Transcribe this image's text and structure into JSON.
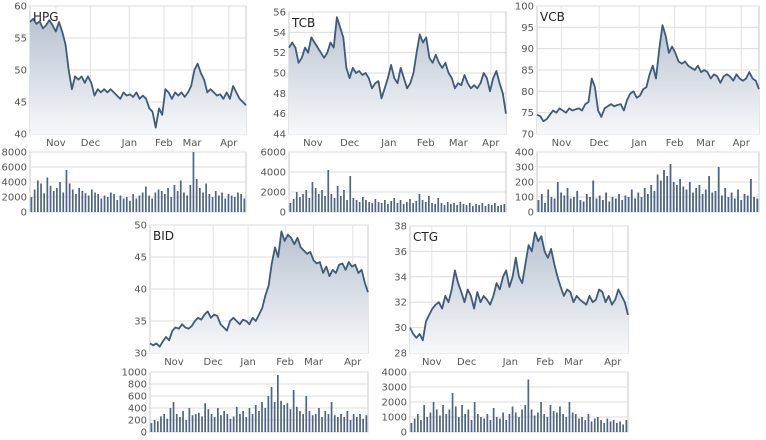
{
  "chart_data": [
    {
      "type": "area",
      "ticker": "HPG",
      "price_axis": {
        "min": 40,
        "max": 60,
        "ticks": [
          40,
          45,
          50,
          55,
          60
        ]
      },
      "volume_axis": {
        "min": 0,
        "max": 8000,
        "ticks": [
          0,
          2000,
          4000,
          6000,
          8000
        ]
      },
      "x_tick_labels": [
        "Nov",
        "Dec",
        "Jan",
        "Feb",
        "Mar",
        "Apr"
      ],
      "price_series": [
        57.5,
        58,
        57.2,
        57.6,
        56.5,
        57,
        57.8,
        57,
        56,
        57.5,
        56,
        54,
        50,
        47,
        49,
        48.5,
        49,
        48,
        49,
        48,
        46,
        47,
        46.5,
        47,
        46.5,
        47,
        46.5,
        46,
        45.5,
        46.5,
        46,
        46.2,
        45.8,
        46.5,
        45.5,
        46,
        45.5,
        44,
        43.5,
        41,
        44,
        43,
        47,
        46.5,
        45.5,
        46.5,
        46,
        46.5,
        45.8,
        46.5,
        47.5,
        50,
        51,
        49.5,
        48.5,
        46.5,
        47,
        46.5,
        46,
        46.2,
        45.5,
        46.5,
        45.5,
        47.5,
        46.5,
        45.5,
        45,
        44.5
      ],
      "volume_series": [
        2000,
        3000,
        4200,
        3800,
        2500,
        4600,
        3500,
        2800,
        3200,
        4000,
        2600,
        5600,
        3800,
        3000,
        2400,
        3200,
        2800,
        2500,
        2200,
        3000,
        2600,
        2400,
        1800,
        2200,
        2000,
        2600,
        2400,
        1600,
        2200,
        1800,
        2000,
        1500,
        2400,
        1800,
        2200,
        2600,
        3400,
        2200,
        1800,
        2600,
        3000,
        2800,
        2400,
        3200,
        2000,
        3600,
        2800,
        4200,
        2600,
        2200,
        3600,
        8000,
        4400,
        3200,
        2600,
        3800,
        2400,
        2000,
        2800,
        2200,
        2600,
        1800,
        2400,
        2200,
        2000,
        2600,
        2400,
        1800
      ]
    },
    {
      "type": "area",
      "ticker": "TCB",
      "price_axis": {
        "min": 44,
        "max": 56,
        "ticks": [
          44,
          46,
          48,
          50,
          52,
          54,
          56
        ]
      },
      "volume_axis": {
        "min": 0,
        "max": 6000,
        "ticks": [
          0,
          2000,
          4000,
          6000
        ]
      },
      "x_tick_labels": [
        "Nov",
        "Dec",
        "Jan",
        "Feb",
        "Mar",
        "Apr"
      ],
      "price_series": [
        52.5,
        53,
        52.5,
        51,
        51.5,
        52.5,
        52,
        53.5,
        53,
        52.5,
        52,
        51.5,
        52,
        53,
        52.5,
        55.5,
        54.5,
        53.5,
        50.5,
        49.5,
        50.5,
        50,
        50.2,
        49.8,
        50,
        49.5,
        48.5,
        49,
        49.2,
        47.5,
        48.5,
        49.5,
        50.8,
        49.5,
        49,
        50.5,
        49.5,
        48.5,
        49,
        50,
        52,
        53.8,
        53,
        53.5,
        51.5,
        51,
        51.8,
        51,
        50.5,
        51,
        50,
        49.5,
        48.5,
        49,
        48.8,
        49.8,
        49,
        48.5,
        48.8,
        48.5,
        49,
        50,
        49.5,
        48.2,
        49.5,
        50.2,
        49,
        48,
        46
      ],
      "volume_series": [
        900,
        1300,
        2000,
        1500,
        1800,
        2200,
        1400,
        3000,
        2400,
        1800,
        2200,
        1600,
        4200,
        1800,
        1400,
        2600,
        1600,
        2200,
        1200,
        3600,
        1400,
        1200,
        1000,
        1500,
        1200,
        1000,
        900,
        1300,
        1000,
        900,
        1200,
        800,
        1100,
        1400,
        900,
        1200,
        800,
        1000,
        1300,
        900,
        1100,
        1800,
        1200,
        1000,
        1600,
        900,
        800,
        1400,
        900,
        700,
        1000,
        800,
        900,
        700,
        1000,
        800,
        700,
        900,
        600,
        800,
        700,
        900,
        600,
        800,
        700,
        900,
        600,
        700,
        800
      ]
    },
    {
      "type": "area",
      "ticker": "VCB",
      "price_axis": {
        "min": 70,
        "max": 100,
        "ticks": [
          70,
          75,
          80,
          85,
          90,
          95,
          100
        ]
      },
      "volume_axis": {
        "min": 0,
        "max": 400,
        "ticks": [
          0,
          100,
          200,
          300,
          400
        ]
      },
      "x_tick_labels": [
        "Nov",
        "Dec",
        "Jan",
        "Feb",
        "Mar",
        "Apr"
      ],
      "price_series": [
        74.5,
        74.2,
        73,
        73.5,
        74.5,
        75.5,
        75,
        76,
        75.5,
        75,
        76,
        75.5,
        75.8,
        76,
        75.5,
        77,
        77.5,
        83,
        81,
        75.5,
        74,
        76,
        76.5,
        77,
        76.5,
        76.8,
        77,
        75.5,
        78,
        79.5,
        80,
        78.5,
        79,
        80.5,
        81,
        84,
        86,
        83,
        90,
        95.5,
        93,
        89,
        90.5,
        89,
        87,
        86.5,
        87,
        86,
        85.5,
        85,
        86,
        84.5,
        85,
        84.5,
        83,
        84,
        83.5,
        82,
        83.5,
        84,
        83.5,
        82.5,
        84,
        83,
        82.5,
        83,
        84.5,
        83,
        82.5,
        80.5
      ],
      "volume_series": [
        80,
        120,
        60,
        150,
        100,
        90,
        200,
        130,
        110,
        160,
        90,
        100,
        140,
        80,
        70,
        120,
        100,
        210,
        90,
        110,
        80,
        130,
        70,
        100,
        90,
        120,
        80,
        110,
        100,
        150,
        90,
        130,
        100,
        160,
        120,
        180,
        140,
        250,
        210,
        280,
        240,
        320,
        200,
        180,
        220,
        170,
        150,
        200,
        130,
        160,
        180,
        120,
        150,
        240,
        130,
        140,
        300,
        110,
        160,
        100,
        130,
        90,
        150,
        80,
        120,
        110,
        220,
        100,
        90
      ]
    },
    {
      "type": "area",
      "ticker": "BID",
      "price_axis": {
        "min": 30,
        "max": 50,
        "ticks": [
          30,
          35,
          40,
          45,
          50
        ]
      },
      "volume_axis": {
        "min": 0,
        "max": 1000,
        "ticks": [
          0,
          200,
          400,
          600,
          800,
          1000
        ]
      },
      "x_tick_labels": [
        "Nov",
        "Dec",
        "Jan",
        "Feb",
        "Mar",
        "Apr"
      ],
      "price_series": [
        31.5,
        31.2,
        31.5,
        31,
        31.8,
        32.5,
        32,
        33.5,
        34,
        33.8,
        34.5,
        34,
        33.8,
        34.2,
        35,
        35.5,
        35.2,
        36,
        36.5,
        35.5,
        36,
        35.8,
        34.5,
        34,
        33.5,
        35,
        35.5,
        35,
        34.5,
        35.2,
        35,
        34.5,
        35.5,
        35,
        36,
        37,
        39,
        40.5,
        44,
        46.5,
        45,
        49,
        47.5,
        48.5,
        48,
        47,
        48,
        46.5,
        46,
        45.5,
        45.8,
        44.5,
        44,
        44.2,
        42.5,
        43.5,
        42,
        43,
        42.5,
        43.8,
        44,
        43,
        44.2,
        43.5,
        43.8,
        42.5,
        43,
        41,
        39.5
      ],
      "volume_series": [
        150,
        200,
        180,
        260,
        300,
        220,
        400,
        500,
        300,
        250,
        350,
        200,
        400,
        280,
        300,
        320,
        260,
        480,
        380,
        300,
        250,
        400,
        280,
        350,
        300,
        220,
        260,
        420,
        300,
        350,
        250,
        400,
        300,
        450,
        350,
        500,
        400,
        600,
        750,
        500,
        950,
        520,
        450,
        480,
        380,
        700,
        420,
        350,
        300,
        600,
        350,
        280,
        300,
        400,
        250,
        350,
        300,
        500,
        280,
        250,
        300,
        250,
        350,
        200,
        300,
        250,
        300,
        220,
        280
      ]
    },
    {
      "type": "area",
      "ticker": "CTG",
      "price_axis": {
        "min": 28,
        "max": 38,
        "ticks": [
          28,
          30,
          32,
          34,
          36,
          38
        ]
      },
      "volume_axis": {
        "min": 0,
        "max": 4000,
        "ticks": [
          0,
          1000,
          2000,
          3000,
          4000
        ]
      },
      "x_tick_labels": [
        "Nov",
        "Dec",
        "Jan",
        "Feb",
        "Mar",
        "Apr"
      ],
      "price_series": [
        30,
        29.5,
        29.2,
        29.5,
        29,
        30.5,
        31,
        31.5,
        31.8,
        32,
        31.5,
        32.5,
        32,
        33,
        34.5,
        33.5,
        32.8,
        32,
        33,
        32.5,
        31.5,
        32.8,
        32,
        32.5,
        32.2,
        31.8,
        32.5,
        33.5,
        33,
        34,
        34.5,
        33.2,
        34,
        35.5,
        34,
        33.5,
        35,
        36.5,
        36,
        37.5,
        36.8,
        37.2,
        36,
        35.5,
        36.2,
        35,
        34,
        33.2,
        32.5,
        33,
        32.8,
        32,
        32.5,
        32.2,
        32,
        31.8,
        32.5,
        32,
        32.2,
        33,
        32.8,
        32,
        32.5,
        31.8,
        32.2,
        33,
        32.5,
        32,
        31
      ],
      "volume_series": [
        600,
        900,
        1200,
        800,
        1800,
        1000,
        1300,
        2000,
        1500,
        1100,
        1800,
        1200,
        1500,
        2600,
        1700,
        1000,
        1800,
        1200,
        1500,
        800,
        2000,
        1200,
        1000,
        900,
        1200,
        800,
        1600,
        1000,
        900,
        1300,
        800,
        1200,
        1700,
        1300,
        1000,
        1500,
        1800,
        3500,
        1500,
        1100,
        1300,
        2000,
        1200,
        1000,
        1800,
        1400,
        1300,
        1700,
        1200,
        1000,
        2000,
        1300,
        1200,
        900,
        1000,
        800,
        1200,
        700,
        900,
        1000,
        800,
        600,
        900,
        700,
        800,
        600,
        700,
        500,
        800
      ]
    }
  ]
}
